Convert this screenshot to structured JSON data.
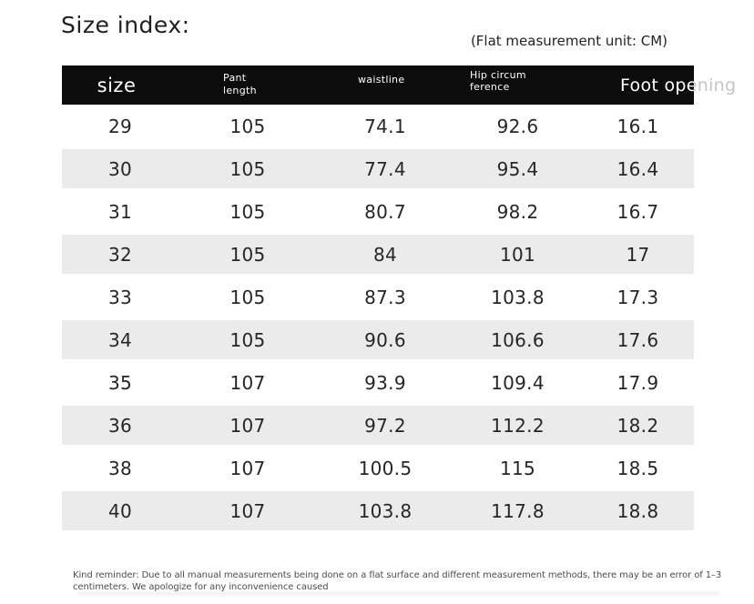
{
  "page": {
    "title": "Size index:",
    "unit_note": "(Flat measurement unit: CM)"
  },
  "table": {
    "columns": [
      {
        "key": "size",
        "label": "size"
      },
      {
        "key": "pant_length",
        "label": "Pant length"
      },
      {
        "key": "waistline",
        "label": "waistline"
      },
      {
        "key": "hip_circumference",
        "label": "Hip circumference"
      },
      {
        "key": "foot_opening",
        "label": "Foot opening"
      }
    ],
    "rows": [
      [
        "29",
        "105",
        "74.1",
        "92.6",
        "16.1"
      ],
      [
        "30",
        "105",
        "77.4",
        "95.4",
        "16.4"
      ],
      [
        "31",
        "105",
        "80.7",
        "98.2",
        "16.7"
      ],
      [
        "32",
        "105",
        "84",
        "101",
        "17"
      ],
      [
        "33",
        "105",
        "87.3",
        "103.8",
        "17.3"
      ],
      [
        "34",
        "105",
        "90.6",
        "106.6",
        "17.6"
      ],
      [
        "35",
        "107",
        "93.9",
        "109.4",
        "17.9"
      ],
      [
        "36",
        "107",
        "97.2",
        "112.2",
        "18.2"
      ],
      [
        "38",
        "107",
        "100.5",
        "115",
        "18.5"
      ],
      [
        "40",
        "107",
        "103.8",
        "117.8",
        "18.8"
      ]
    ]
  },
  "footer": {
    "note": "Kind reminder: Due to all manual measurements being done on a flat surface and different measurement methods, there may be an error of 1–3 centimeters. We apologize for any inconvenience caused"
  },
  "colors": {
    "header_bg": "#0c0c0c",
    "header_text": "#ffffff",
    "stripe": "#ebebeb",
    "overflow_text": "#c6c6c6"
  }
}
